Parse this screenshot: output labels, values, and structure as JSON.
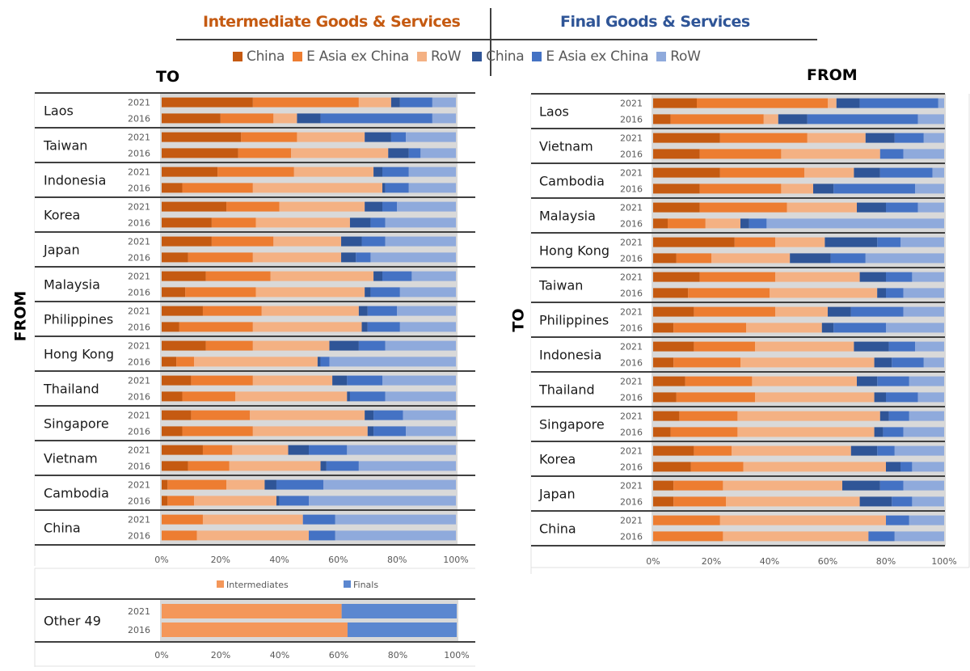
{
  "header": {
    "intermediate_title": "Intermediate Goods & Services",
    "final_title": "Final Goods & Services",
    "intermediate_color": "#c55a11",
    "final_color": "#2f5597"
  },
  "legend": [
    {
      "label": "China",
      "color": "#c55a11"
    },
    {
      "label": "E Asia ex China",
      "color": "#ed7d31"
    },
    {
      "label": "RoW",
      "color": "#f4b183"
    },
    {
      "label": "China",
      "color": "#2f5597"
    },
    {
      "label": "E Asia ex China",
      "color": "#4472c4"
    },
    {
      "label": "RoW",
      "color": "#8faadc"
    }
  ],
  "left_panel": {
    "top_label": "TO",
    "side_label": "FROM"
  },
  "right_panel": {
    "top_label": "FROM",
    "side_label": "TO"
  },
  "chart_data": [
    {
      "type": "bar",
      "orientation": "horizontal-stacked-100",
      "title": "Exports FROM country TO partner regions",
      "xlabel": "",
      "ylabel": "FROM",
      "xlim": [
        0,
        100
      ],
      "xticks": [
        "0%",
        "20%",
        "40%",
        "60%",
        "80%",
        "100%"
      ],
      "series_names": [
        "Int: China",
        "Int: E Asia ex China",
        "Int: RoW",
        "Fin: China",
        "Fin: E Asia ex China",
        "Fin: RoW"
      ],
      "groups": [
        {
          "name": "Laos",
          "rows": [
            {
              "year": "2021",
              "values": [
                31,
                36,
                11,
                3,
                11,
                8
              ]
            },
            {
              "year": "2016",
              "values": [
                20,
                18,
                8,
                8,
                38,
                8
              ]
            }
          ]
        },
        {
          "name": "Taiwan",
          "rows": [
            {
              "year": "2021",
              "values": [
                27,
                19,
                23,
                9,
                5,
                17
              ]
            },
            {
              "year": "2016",
              "values": [
                26,
                18,
                33,
                7,
                4,
                12
              ]
            }
          ]
        },
        {
          "name": "Indonesia",
          "rows": [
            {
              "year": "2021",
              "values": [
                19,
                26,
                27,
                3,
                9,
                16
              ]
            },
            {
              "year": "2016",
              "values": [
                7,
                24,
                44,
                1,
                8,
                16
              ]
            }
          ]
        },
        {
          "name": "Korea",
          "rows": [
            {
              "year": "2021",
              "values": [
                22,
                18,
                29,
                6,
                5,
                20
              ]
            },
            {
              "year": "2016",
              "values": [
                17,
                15,
                32,
                7,
                5,
                24
              ]
            }
          ]
        },
        {
          "name": "Japan",
          "rows": [
            {
              "year": "2021",
              "values": [
                17,
                21,
                23,
                7,
                8,
                24
              ]
            },
            {
              "year": "2016",
              "values": [
                9,
                22,
                30,
                5,
                5,
                29
              ]
            }
          ]
        },
        {
          "name": "Malaysia",
          "rows": [
            {
              "year": "2021",
              "values": [
                15,
                22,
                35,
                3,
                10,
                15
              ]
            },
            {
              "year": "2016",
              "values": [
                8,
                24,
                37,
                2,
                10,
                19
              ]
            }
          ]
        },
        {
          "name": "Philippines",
          "rows": [
            {
              "year": "2021",
              "values": [
                14,
                20,
                33,
                3,
                10,
                20
              ]
            },
            {
              "year": "2016",
              "values": [
                6,
                25,
                37,
                2,
                11,
                19
              ]
            }
          ]
        },
        {
          "name": "Hong Kong",
          "rows": [
            {
              "year": "2021",
              "values": [
                15,
                16,
                26,
                10,
                9,
                24
              ]
            },
            {
              "year": "2016",
              "values": [
                5,
                6,
                42,
                1,
                3,
                43
              ]
            }
          ]
        },
        {
          "name": "Thailand",
          "rows": [
            {
              "year": "2021",
              "values": [
                10,
                21,
                27,
                5,
                12,
                25
              ]
            },
            {
              "year": "2016",
              "values": [
                7,
                18,
                38,
                1,
                12,
                24
              ]
            }
          ]
        },
        {
          "name": "Singapore",
          "rows": [
            {
              "year": "2021",
              "values": [
                10,
                20,
                39,
                3,
                10,
                18
              ]
            },
            {
              "year": "2016",
              "values": [
                7,
                24,
                39,
                2,
                11,
                17
              ]
            }
          ]
        },
        {
          "name": "Vietnam",
          "rows": [
            {
              "year": "2021",
              "values": [
                14,
                10,
                19,
                7,
                13,
                37
              ]
            },
            {
              "year": "2016",
              "values": [
                9,
                14,
                31,
                2,
                11,
                33
              ]
            }
          ]
        },
        {
          "name": "Cambodia",
          "rows": [
            {
              "year": "2021",
              "values": [
                2,
                20,
                13,
                4,
                16,
                45
              ]
            },
            {
              "year": "2016",
              "values": [
                2,
                9,
                28,
                1,
                10,
                50
              ]
            }
          ]
        },
        {
          "name": "China",
          "rows": [
            {
              "year": "2021",
              "values": [
                0,
                14,
                34,
                0,
                11,
                41
              ]
            },
            {
              "year": "2016",
              "values": [
                0,
                12,
                38,
                0,
                9,
                41
              ]
            }
          ]
        }
      ]
    },
    {
      "type": "bar",
      "orientation": "horizontal-stacked-100",
      "title": "Other 49 — Intermediates vs Finals",
      "xlim": [
        0,
        100
      ],
      "xticks": [
        "0%",
        "20%",
        "40%",
        "60%",
        "80%",
        "100%"
      ],
      "legend": [
        {
          "label": "Intermediates",
          "color": "#f4975a"
        },
        {
          "label": "Finals",
          "color": "#5b87d0"
        }
      ],
      "groups": [
        {
          "name": "Other 49",
          "rows": [
            {
              "year": "2021",
              "values": [
                61,
                39
              ]
            },
            {
              "year": "2016",
              "values": [
                63,
                37
              ]
            }
          ]
        }
      ]
    },
    {
      "type": "bar",
      "orientation": "horizontal-stacked-100",
      "title": "Imports TO country FROM partner regions",
      "ylabel": "TO",
      "xlim": [
        0,
        100
      ],
      "xticks": [
        "0%",
        "20%",
        "40%",
        "60%",
        "80%",
        "100%"
      ],
      "series_names": [
        "Int: China",
        "Int: E Asia ex China",
        "Int: RoW",
        "Fin: China",
        "Fin: E Asia ex China",
        "Fin: RoW"
      ],
      "groups": [
        {
          "name": "Laos",
          "rows": [
            {
              "year": "2021",
              "values": [
                15,
                45,
                3,
                8,
                27,
                2
              ]
            },
            {
              "year": "2016",
              "values": [
                6,
                32,
                5,
                10,
                38,
                9
              ]
            }
          ]
        },
        {
          "name": "Vietnam",
          "rows": [
            {
              "year": "2021",
              "values": [
                23,
                30,
                20,
                10,
                10,
                7
              ]
            },
            {
              "year": "2016",
              "values": [
                16,
                28,
                34,
                0,
                8,
                14
              ]
            }
          ]
        },
        {
          "name": "Cambodia",
          "rows": [
            {
              "year": "2021",
              "values": [
                23,
                29,
                17,
                9,
                18,
                4
              ]
            },
            {
              "year": "2016",
              "values": [
                16,
                28,
                11,
                7,
                28,
                10
              ]
            }
          ]
        },
        {
          "name": "Malaysia",
          "rows": [
            {
              "year": "2021",
              "values": [
                16,
                30,
                24,
                10,
                11,
                9
              ]
            },
            {
              "year": "2016",
              "values": [
                5,
                13,
                12,
                3,
                6,
                61
              ]
            }
          ]
        },
        {
          "name": "Hong Kong",
          "rows": [
            {
              "year": "2021",
              "values": [
                28,
                14,
                17,
                18,
                8,
                15
              ]
            },
            {
              "year": "2016",
              "values": [
                8,
                12,
                27,
                14,
                12,
                27
              ]
            }
          ]
        },
        {
          "name": "Taiwan",
          "rows": [
            {
              "year": "2021",
              "values": [
                16,
                26,
                29,
                9,
                9,
                11
              ]
            },
            {
              "year": "2016",
              "values": [
                12,
                28,
                37,
                3,
                6,
                14
              ]
            }
          ]
        },
        {
          "name": "Philippines",
          "rows": [
            {
              "year": "2021",
              "values": [
                14,
                28,
                18,
                8,
                18,
                14
              ]
            },
            {
              "year": "2016",
              "values": [
                7,
                25,
                26,
                4,
                18,
                20
              ]
            }
          ]
        },
        {
          "name": "Indonesia",
          "rows": [
            {
              "year": "2021",
              "values": [
                14,
                21,
                34,
                12,
                9,
                10
              ]
            },
            {
              "year": "2016",
              "values": [
                7,
                23,
                46,
                6,
                11,
                7
              ]
            }
          ]
        },
        {
          "name": "Thailand",
          "rows": [
            {
              "year": "2021",
              "values": [
                11,
                23,
                36,
                7,
                11,
                12
              ]
            },
            {
              "year": "2016",
              "values": [
                8,
                27,
                41,
                4,
                11,
                9
              ]
            }
          ]
        },
        {
          "name": "Singapore",
          "rows": [
            {
              "year": "2021",
              "values": [
                9,
                20,
                49,
                3,
                7,
                12
              ]
            },
            {
              "year": "2016",
              "values": [
                6,
                23,
                47,
                3,
                7,
                14
              ]
            }
          ]
        },
        {
          "name": "Korea",
          "rows": [
            {
              "year": "2021",
              "values": [
                14,
                13,
                41,
                9,
                6,
                17
              ]
            },
            {
              "year": "2016",
              "values": [
                13,
                18,
                49,
                5,
                4,
                11
              ]
            }
          ]
        },
        {
          "name": "Japan",
          "rows": [
            {
              "year": "2021",
              "values": [
                7,
                17,
                41,
                13,
                8,
                14
              ]
            },
            {
              "year": "2016",
              "values": [
                7,
                18,
                46,
                11,
                7,
                11
              ]
            }
          ]
        },
        {
          "name": "China",
          "rows": [
            {
              "year": "2021",
              "values": [
                0,
                23,
                57,
                0,
                8,
                12
              ]
            },
            {
              "year": "2016",
              "values": [
                0,
                24,
                50,
                0,
                9,
                17
              ]
            }
          ]
        }
      ]
    }
  ]
}
